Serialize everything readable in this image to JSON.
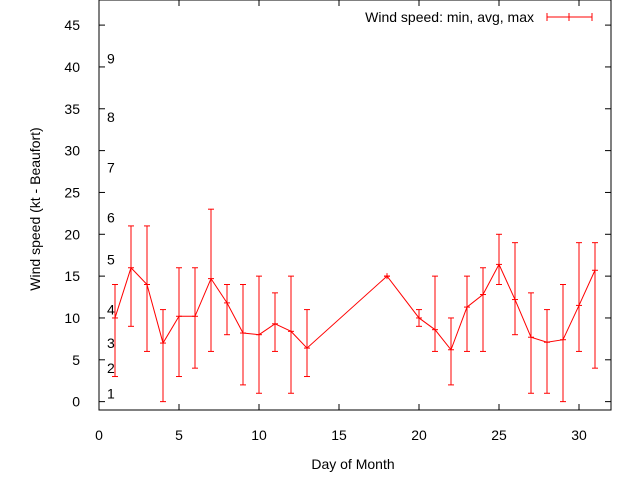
{
  "chart_data": {
    "type": "line",
    "title": "",
    "xlabel": "Day of Month",
    "ylabel": "Wind speed (kt - Beaufort)",
    "xlim": [
      0,
      32
    ],
    "ylim": [
      -1,
      48
    ],
    "xticks": [
      0,
      5,
      10,
      15,
      20,
      25,
      30
    ],
    "yticks": [
      0,
      5,
      10,
      15,
      20,
      25,
      30,
      35,
      40,
      45
    ],
    "grid": false,
    "legend_position": "top-right",
    "beaufort_labels": [
      {
        "label": "1",
        "y": 1
      },
      {
        "label": "2",
        "y": 4
      },
      {
        "label": "3",
        "y": 7
      },
      {
        "label": "4",
        "y": 11
      },
      {
        "label": "5",
        "y": 17
      },
      {
        "label": "6",
        "y": 22
      },
      {
        "label": "7",
        "y": 28
      },
      {
        "label": "8",
        "y": 34
      },
      {
        "label": "9",
        "y": 41
      }
    ],
    "series": [
      {
        "name": "Wind speed: min, avg, max",
        "color": "#ff0000",
        "segments": [
          [
            {
              "x": 1,
              "y": 10,
              "min": 3,
              "max": 14
            },
            {
              "x": 2,
              "y": 16,
              "min": 9,
              "max": 21
            },
            {
              "x": 3,
              "y": 14,
              "min": 6,
              "max": 21
            },
            {
              "x": 4,
              "y": 7,
              "min": 0,
              "max": 11
            },
            {
              "x": 5,
              "y": 10.2,
              "min": 3,
              "max": 16
            },
            {
              "x": 6,
              "y": 10.2,
              "min": 4,
              "max": 16
            },
            {
              "x": 7,
              "y": 14.7,
              "min": 6,
              "max": 23
            },
            {
              "x": 8,
              "y": 11.8,
              "min": 8,
              "max": 14
            },
            {
              "x": 9,
              "y": 8.2,
              "min": 2,
              "max": 14
            },
            {
              "x": 10,
              "y": 8,
              "min": 1,
              "max": 15
            },
            {
              "x": 11,
              "y": 9.3,
              "min": 6,
              "max": 13
            },
            {
              "x": 12,
              "y": 8.4,
              "min": 1,
              "max": 15
            },
            {
              "x": 13,
              "y": 6.4,
              "min": 3,
              "max": 11
            },
            {
              "x": 18,
              "y": 15,
              "min": 15,
              "max": 15
            },
            {
              "x": 20,
              "y": 10,
              "min": 9,
              "max": 11
            },
            {
              "x": 21,
              "y": 8.6,
              "min": 6,
              "max": 15
            },
            {
              "x": 22,
              "y": 6.2,
              "min": 2,
              "max": 10
            },
            {
              "x": 23,
              "y": 11.3,
              "min": 6,
              "max": 15
            },
            {
              "x": 24,
              "y": 12.8,
              "min": 6,
              "max": 16
            },
            {
              "x": 25,
              "y": 16.4,
              "min": 14,
              "max": 20
            },
            {
              "x": 26,
              "y": 12.2,
              "min": 8,
              "max": 19
            },
            {
              "x": 27,
              "y": 7.7,
              "min": 1,
              "max": 13
            },
            {
              "x": 28,
              "y": 7.1,
              "min": 1,
              "max": 11
            },
            {
              "x": 29,
              "y": 7.4,
              "min": 0,
              "max": 14
            },
            {
              "x": 30,
              "y": 11.5,
              "min": 6,
              "max": 19
            },
            {
              "x": 31,
              "y": 15.7,
              "min": 4,
              "max": 19
            }
          ]
        ]
      }
    ]
  }
}
